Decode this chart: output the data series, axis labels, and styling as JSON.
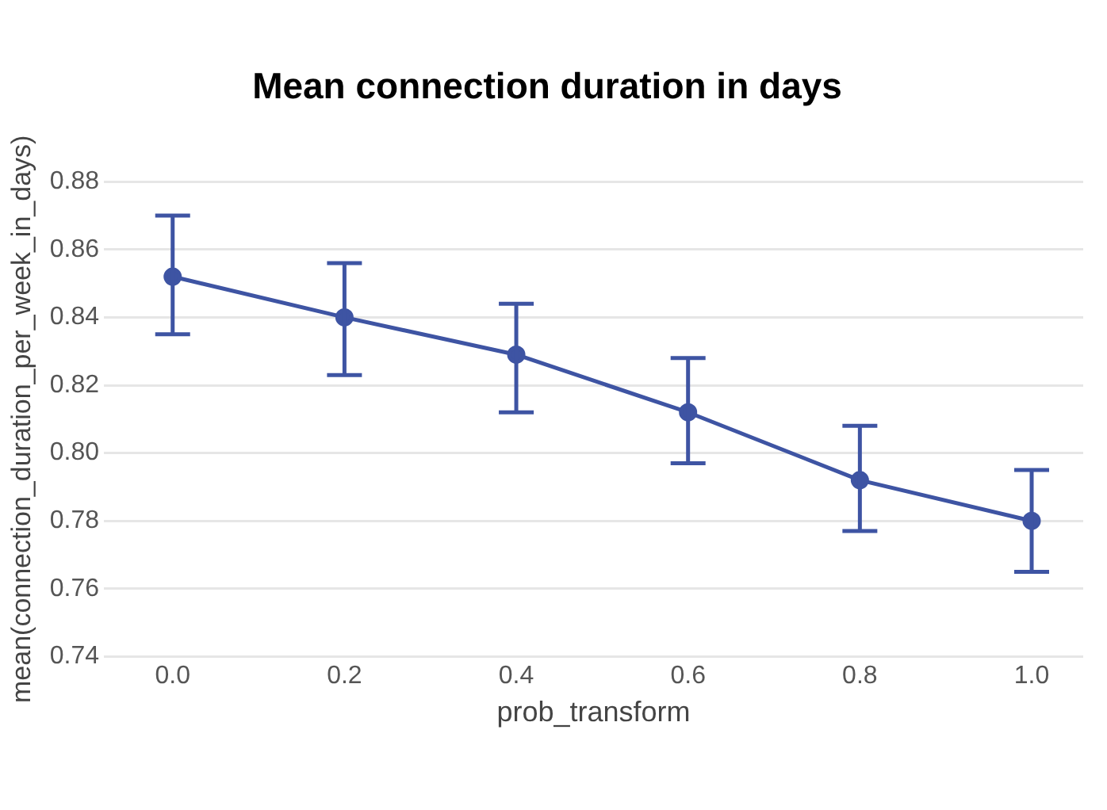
{
  "chart_data": {
    "type": "line",
    "title": "Mean connection duration in days",
    "xlabel": "prob_transform",
    "ylabel": "mean(connection_duration_per_week_in_days)",
    "x": [
      0.0,
      0.2,
      0.4,
      0.6,
      0.8,
      1.0
    ],
    "series": [
      {
        "color": "#3e54a3",
        "values": [
          0.852,
          0.84,
          0.829,
          0.812,
          0.792,
          0.78
        ],
        "errors": [
          [
            0.835,
            0.87
          ],
          [
            0.823,
            0.856
          ],
          [
            0.812,
            0.844
          ],
          [
            0.797,
            0.828
          ],
          [
            0.777,
            0.808
          ],
          [
            0.765,
            0.795
          ]
        ]
      }
    ],
    "xlim": [
      -0.08,
      1.06
    ],
    "xticks": [
      {
        "value": 0,
        "label": "0.0"
      },
      {
        "value": 0.2,
        "label": "0.2"
      },
      {
        "value": 0.4,
        "label": "0.4"
      },
      {
        "value": 0.6,
        "label": "0.6"
      },
      {
        "value": 0.8,
        "label": "0.8"
      },
      {
        "value": 1,
        "label": "1.0"
      }
    ],
    "ylim": [
      0.74,
      0.88
    ],
    "yticks": [
      {
        "value": 0.74,
        "label": "0.74"
      },
      {
        "value": 0.76,
        "label": "0.76"
      },
      {
        "value": 0.78,
        "label": "0.78"
      },
      {
        "value": 0.8,
        "label": "0.80"
      },
      {
        "value": 0.82,
        "label": "0.82"
      },
      {
        "value": 0.84,
        "label": "0.84"
      },
      {
        "value": 0.86,
        "label": "0.86"
      },
      {
        "value": 0.88,
        "label": "0.88"
      }
    ],
    "grid": "y",
    "marker": "circle",
    "line_style": "solid",
    "legend": false
  }
}
